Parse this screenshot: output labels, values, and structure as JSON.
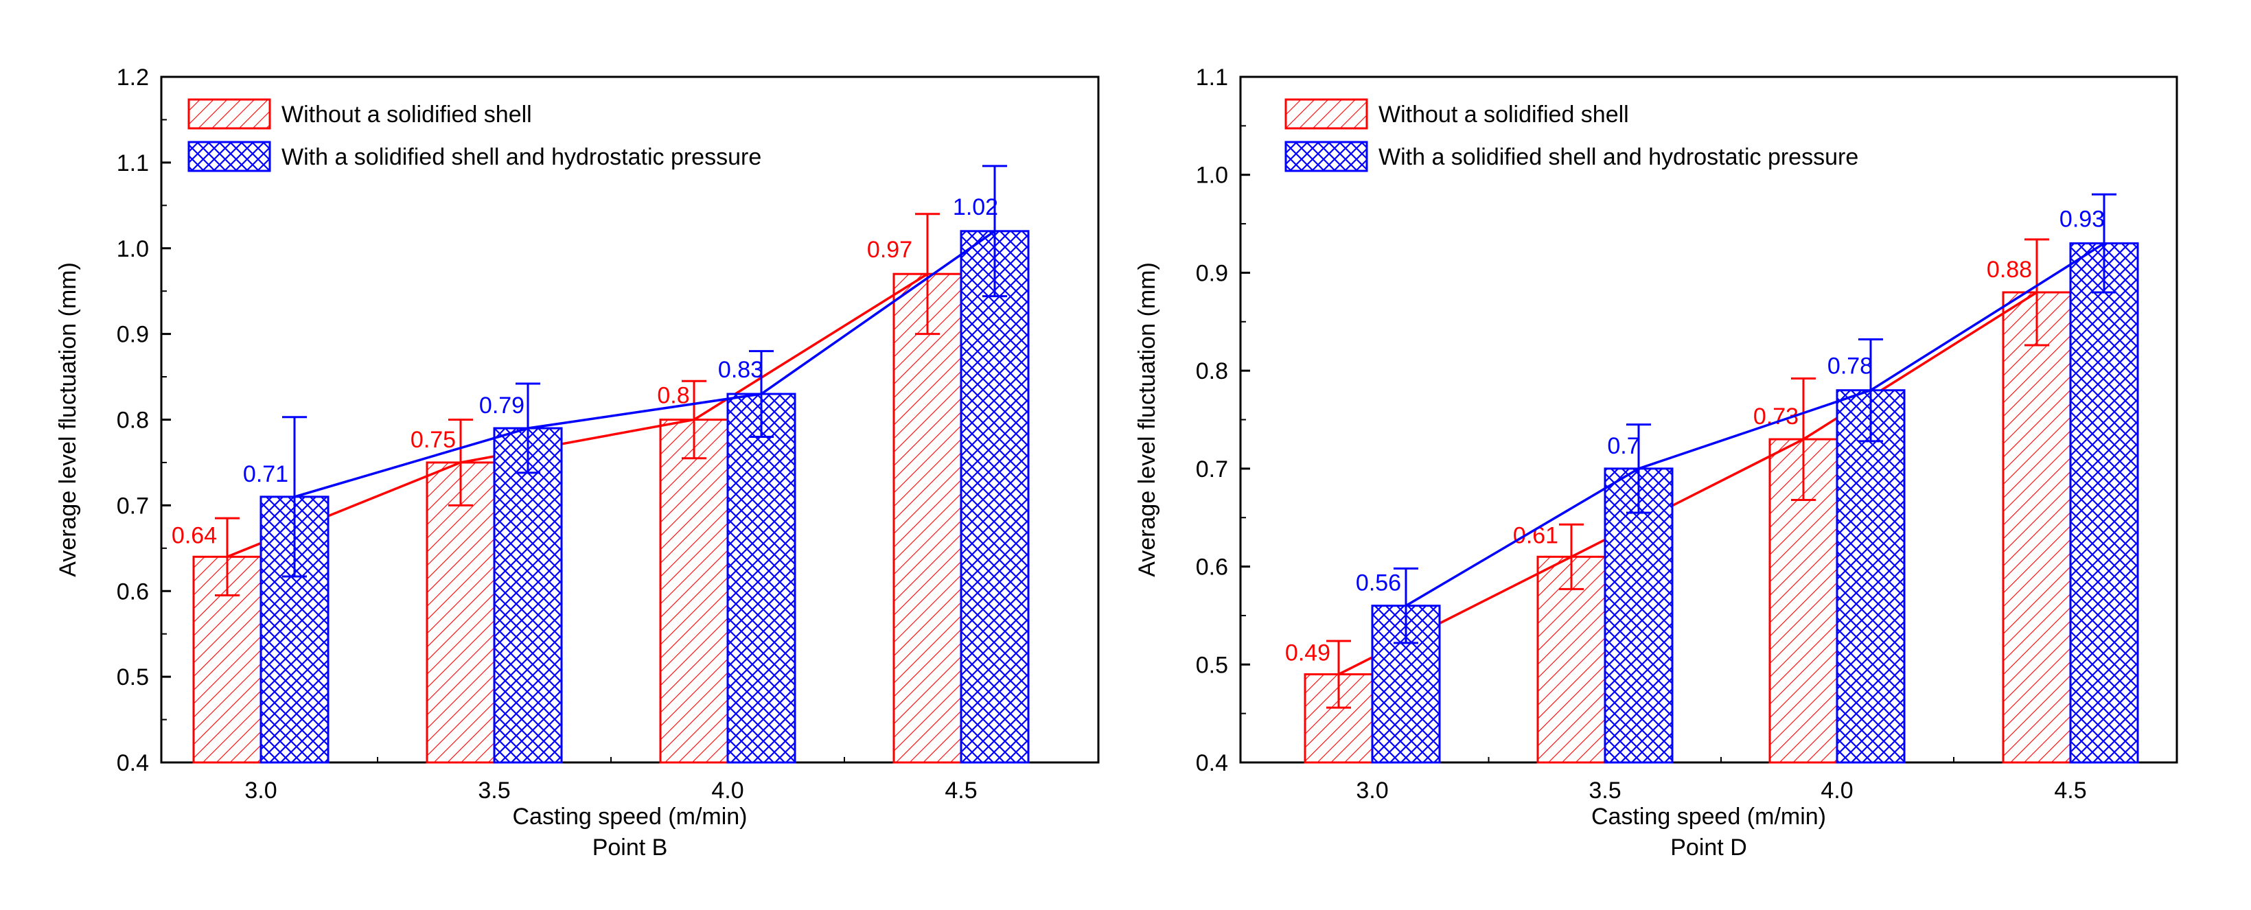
{
  "colors": {
    "series1": "#ff0000",
    "series2": "#0000ff",
    "axis": "#000000"
  },
  "chart_data": [
    {
      "type": "bar",
      "panel_caption": "Point B",
      "xlabel": "Casting speed (m/min)",
      "ylabel": "Average level fluctuation (mm)",
      "ylim": [
        0.4,
        1.2
      ],
      "yticks": [
        "0.4",
        "0.5",
        "0.6",
        "0.7",
        "0.8",
        "0.9",
        "1.0",
        "1.1",
        "1.2"
      ],
      "categories": [
        "3.0",
        "3.5",
        "4.0",
        "4.5"
      ],
      "series": [
        {
          "name": "Without a solidified shell",
          "pattern": "diagonal",
          "color": "#ff0000",
          "values": [
            0.64,
            0.75,
            0.8,
            0.97
          ],
          "labels": [
            "0.64",
            "0.75",
            "0.8",
            "0.97"
          ],
          "errors": [
            0.045,
            0.05,
            0.045,
            0.07
          ]
        },
        {
          "name": "With a solidified shell and hydrostatic pressure",
          "pattern": "crosshatch",
          "color": "#0000ff",
          "values": [
            0.71,
            0.79,
            0.83,
            1.02
          ],
          "labels": [
            "0.71",
            "0.79",
            "0.83",
            "1.02"
          ],
          "errors": [
            0.093,
            0.052,
            0.05,
            0.076
          ]
        }
      ],
      "legend": "top-left"
    },
    {
      "type": "bar",
      "panel_caption": "Point D",
      "xlabel": "Casting speed (m/min)",
      "ylabel": "Average level fluctuation (mm)",
      "ylim": [
        0.4,
        1.1
      ],
      "yticks": [
        "0.4",
        "0.5",
        "0.6",
        "0.7",
        "0.8",
        "0.9",
        "1.0",
        "1.1"
      ],
      "categories": [
        "3.0",
        "3.5",
        "4.0",
        "4.5"
      ],
      "series": [
        {
          "name": "Without a solidified shell",
          "pattern": "diagonal",
          "color": "#ff0000",
          "values": [
            0.49,
            0.61,
            0.73,
            0.88
          ],
          "labels": [
            "0.49",
            "0.61",
            "0.73",
            "0.88"
          ],
          "errors": [
            0.034,
            0.033,
            0.062,
            0.054
          ]
        },
        {
          "name": "With a solidified shell and hydrostatic pressure",
          "pattern": "crosshatch",
          "color": "#0000ff",
          "values": [
            0.56,
            0.7,
            0.78,
            0.93
          ],
          "labels": [
            "0.56",
            "0.7",
            "0.78",
            "0.93"
          ],
          "errors": [
            0.038,
            0.045,
            0.052,
            0.05
          ]
        }
      ],
      "legend": "top-left"
    }
  ]
}
